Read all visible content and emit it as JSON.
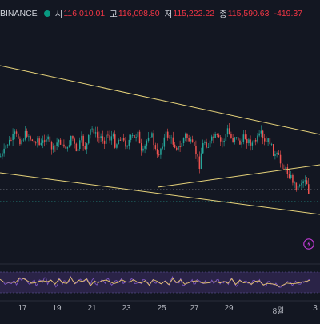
{
  "header": {
    "exchange": "BINANCE",
    "open_label": "시",
    "open": "116,010.01",
    "high_label": "고",
    "high": "116,098.80",
    "low_label": "저",
    "low": "115,222.22",
    "close_label": "종",
    "close": "115,590.63",
    "change": "-419.37",
    "status_color": "#089981"
  },
  "colors": {
    "background": "#131722",
    "up": "#26a69a",
    "down": "#ef5350",
    "trendline": "#e6d27a",
    "rsi_line": "#7e57c2",
    "rsi_band": "#2a2347"
  },
  "chart_data": {
    "type": "candlestick",
    "x_ticks": [
      "17",
      "19",
      "21",
      "23",
      "25",
      "27",
      "29",
      "8월",
      "3"
    ],
    "price_path": [
      48,
      46,
      38,
      36,
      33,
      29,
      31,
      35,
      33,
      28,
      30,
      34,
      37,
      31,
      40,
      36,
      31,
      34,
      40,
      42,
      37,
      33,
      40,
      38,
      43,
      30,
      34,
      46,
      38,
      33,
      41,
      37,
      26,
      24,
      30,
      33,
      31,
      35,
      28,
      33,
      30,
      39,
      34,
      31,
      36,
      38,
      34,
      31,
      34,
      24,
      46,
      44,
      36,
      28,
      30,
      40,
      49,
      42,
      36,
      29,
      31,
      34,
      38,
      40,
      42,
      34,
      30,
      33,
      37,
      41,
      46,
      56,
      39,
      35,
      40,
      35,
      32,
      31,
      34,
      37,
      33,
      25,
      31,
      34,
      28,
      37,
      36,
      31,
      34,
      36,
      37,
      35,
      32,
      29,
      37,
      36,
      34,
      42,
      48,
      47,
      54,
      57,
      60,
      63,
      67,
      72,
      75,
      70,
      69,
      66,
      78
    ],
    "rsi_path": [
      60,
      55,
      45,
      52,
      48,
      62,
      40,
      66,
      58,
      70,
      50,
      45,
      62,
      38,
      55,
      48,
      72,
      44,
      58,
      52,
      36,
      64,
      46,
      56,
      42,
      68,
      50,
      40,
      60,
      54,
      48,
      70,
      38,
      62,
      44,
      50,
      58,
      46,
      66,
      52,
      40,
      56,
      48,
      62,
      44,
      58,
      50,
      68,
      42,
      54,
      46,
      60,
      52,
      40,
      64,
      48,
      56,
      44,
      58,
      50,
      42,
      66,
      54,
      46,
      60,
      38,
      52,
      48,
      56,
      44,
      62,
      50,
      40,
      58,
      46,
      54,
      42,
      60,
      48,
      52,
      56,
      44,
      64,
      50,
      38,
      58,
      46,
      54,
      50,
      42,
      60,
      48,
      56,
      44,
      36,
      52,
      46,
      40,
      48,
      34,
      40,
      44,
      50,
      46,
      42,
      52,
      48,
      50,
      56,
      52,
      58
    ],
    "grid": false
  }
}
